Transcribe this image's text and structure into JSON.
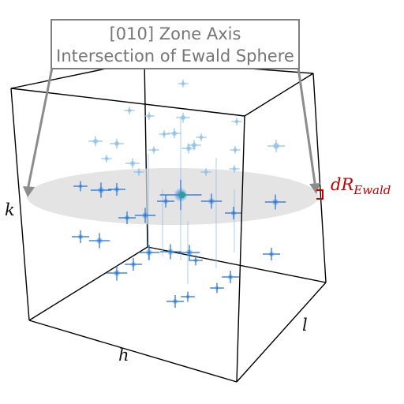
{
  "callout": {
    "line1": "[010] Zone Axis",
    "line2": "Intersection of Ewald Sphere"
  },
  "axes": {
    "h": "h",
    "k": "k",
    "l": "l"
  },
  "thickness_label": {
    "main": "dR",
    "subscript": "Ewald"
  },
  "colors": {
    "box": "#000000",
    "callout_border": "#7f7f7f",
    "callout_text": "#767676",
    "arrow": "#8c8c8c",
    "ewald_plane": "#d9d9d9",
    "peak": "#1f6fd6",
    "peak_faint": "#8fc0ea",
    "center": "#2a9d9d",
    "thickness_bracket": "#c00000"
  }
}
